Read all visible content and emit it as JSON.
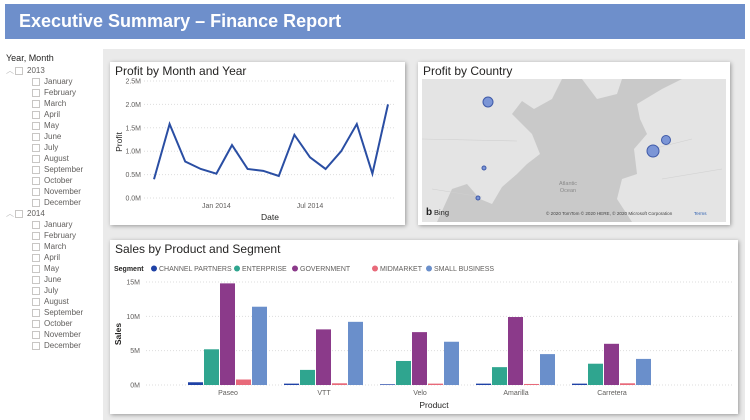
{
  "header": {
    "title": "Executive Summary – Finance Report"
  },
  "slicer": {
    "title": "Year, Month",
    "years": [
      {
        "year": "2013",
        "months": [
          "January",
          "February",
          "March",
          "April",
          "May",
          "June",
          "July",
          "August",
          "September",
          "October",
          "November",
          "December"
        ]
      },
      {
        "year": "2014",
        "months": [
          "January",
          "February",
          "March",
          "April",
          "May",
          "June",
          "July",
          "August",
          "September",
          "October",
          "November",
          "December"
        ]
      }
    ]
  },
  "map": {
    "title": "Profit by Country",
    "ocean_label_1": "Atlantic",
    "ocean_label_2": "Ocean",
    "logo": "Bing",
    "attribution": "© 2020 TomTom © 2020 HERE, © 2020 Microsoft Corporation",
    "terms": "Terms",
    "bubble_color": "#7b95d6"
  },
  "chart_data": [
    {
      "type": "line",
      "title": "Profit by Month and Year",
      "xlabel": "Date",
      "ylabel": "Profit",
      "x": [
        "2013-09",
        "2013-10",
        "2013-11",
        "2013-12",
        "2014-01",
        "2014-02",
        "2014-03",
        "2014-04",
        "2014-05",
        "2014-06",
        "2014-07",
        "2014-08",
        "2014-09",
        "2014-10",
        "2014-11",
        "2014-12"
      ],
      "values": [
        0.4,
        1.58,
        0.78,
        0.62,
        0.52,
        1.13,
        0.62,
        0.58,
        0.47,
        1.35,
        0.87,
        0.62,
        1.0,
        1.58,
        0.52,
        2.0
      ],
      "unit": "M",
      "x_ticks": [
        {
          "at": "2014-01",
          "label": "Jan 2014"
        },
        {
          "at": "2014-07",
          "label": "Jul 2014"
        }
      ],
      "y_ticks": [
        "0.0M",
        "0.5M",
        "1.0M",
        "1.5M",
        "2.0M",
        "2.5M"
      ],
      "ylim": [
        0,
        2.5
      ],
      "grid": true,
      "color": "#2a4ea3"
    },
    {
      "type": "bar",
      "title": "Sales by Product and Segment",
      "xlabel": "Product",
      "ylabel": "Sales",
      "legend_title": "Segment",
      "legend_position": "top-left",
      "categories": [
        "Paseo",
        "VTT",
        "Velo",
        "Amarilla",
        "Carretera"
      ],
      "series": [
        {
          "name": "CHANNEL PARTNERS",
          "color": "#1f42a6",
          "values": [
            0.4,
            0.2,
            0.1,
            0.2,
            0.2
          ]
        },
        {
          "name": "ENTERPRISE",
          "color": "#2fa58f",
          "values": [
            5.2,
            2.2,
            3.5,
            2.6,
            3.1
          ]
        },
        {
          "name": "GOVERNMENT",
          "color": "#8b3a8a",
          "values": [
            14.8,
            8.1,
            7.7,
            9.9,
            6.0
          ]
        },
        {
          "name": "MIDMARKET",
          "color": "#e86a7a",
          "values": [
            0.8,
            0.25,
            0.2,
            0.15,
            0.25
          ]
        },
        {
          "name": "SMALL BUSINESS",
          "color": "#6a8fcb",
          "values": [
            11.4,
            9.2,
            6.3,
            4.5,
            3.8
          ]
        }
      ],
      "unit": "M",
      "y_ticks": [
        "0M",
        "5M",
        "10M",
        "15M"
      ],
      "ylim": [
        0,
        15
      ],
      "grid": true
    }
  ]
}
